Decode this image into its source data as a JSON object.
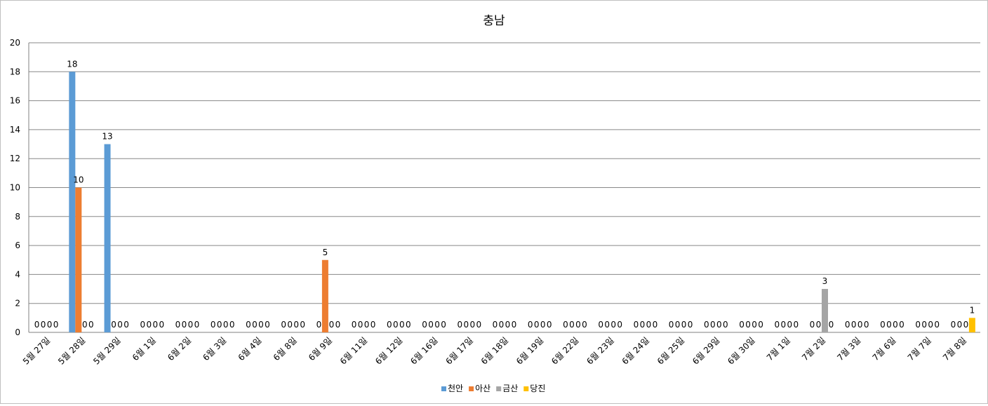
{
  "chart_data": {
    "type": "bar",
    "title": "충남",
    "xlabel": "",
    "ylabel": "",
    "ylim": [
      0,
      20
    ],
    "yticks": [
      0,
      2,
      4,
      6,
      8,
      10,
      12,
      14,
      16,
      18,
      20
    ],
    "grid": true,
    "legend_position": "bottom",
    "categories": [
      "5월 27일",
      "5월 28일",
      "5월 29일",
      "6월 1일",
      "6월 2일",
      "6월 3일",
      "6월 4일",
      "6월 8일",
      "6월 9일",
      "6월 11일",
      "6월 12일",
      "6월 16일",
      "6월 17일",
      "6월 18일",
      "6월 19일",
      "6월 22일",
      "6월 23일",
      "6월 24일",
      "6월 25일",
      "6월 29일",
      "6월 30일",
      "7월 1일",
      "7월 2일",
      "7월 3일",
      "7월 6일",
      "7월 7일",
      "7월 8일"
    ],
    "series": [
      {
        "name": "천안",
        "color": "#5b9bd5",
        "values": [
          0,
          18,
          13,
          0,
          0,
          0,
          0,
          0,
          0,
          0,
          0,
          0,
          0,
          0,
          0,
          0,
          0,
          0,
          0,
          0,
          0,
          0,
          0,
          0,
          0,
          0,
          0
        ]
      },
      {
        "name": "아산",
        "color": "#ed7d31",
        "values": [
          0,
          10,
          0,
          0,
          0,
          0,
          0,
          0,
          5,
          0,
          0,
          0,
          0,
          0,
          0,
          0,
          0,
          0,
          0,
          0,
          0,
          0,
          0,
          0,
          0,
          0,
          0
        ]
      },
      {
        "name": "금산",
        "color": "#a5a5a5",
        "values": [
          0,
          0,
          0,
          0,
          0,
          0,
          0,
          0,
          0,
          0,
          0,
          0,
          0,
          0,
          0,
          0,
          0,
          0,
          0,
          0,
          0,
          0,
          3,
          0,
          0,
          0,
          0
        ]
      },
      {
        "name": "당진",
        "color": "#ffc000",
        "values": [
          0,
          0,
          0,
          0,
          0,
          0,
          0,
          0,
          0,
          0,
          0,
          0,
          0,
          0,
          0,
          0,
          0,
          0,
          0,
          0,
          0,
          0,
          0,
          0,
          0,
          0,
          1
        ]
      }
    ]
  }
}
